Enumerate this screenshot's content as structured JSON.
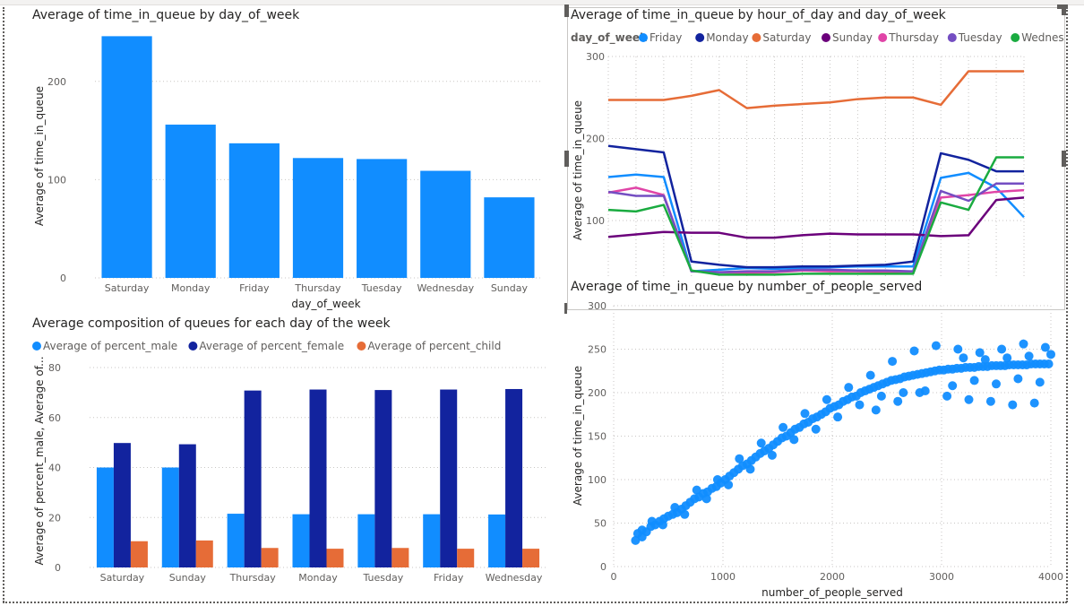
{
  "chart_data": [
    {
      "id": "bar",
      "type": "bar",
      "title": "Average of time_in_queue by day_of_week",
      "xlabel": "day_of_week",
      "ylabel": "Average of time_in_queue",
      "categories": [
        "Saturday",
        "Monday",
        "Friday",
        "Thursday",
        "Tuesday",
        "Wednesday",
        "Sunday"
      ],
      "values": [
        246,
        156,
        137,
        122,
        121,
        109,
        82
      ],
      "ylim": [
        0,
        250
      ],
      "yticks": [
        0,
        100,
        200
      ],
      "color": "#118dff"
    },
    {
      "id": "line",
      "type": "line",
      "title": "Average of time_in_queue by hour_of_day and day_of_week",
      "ylabel": "Average of time_in_queue",
      "legend_title": "day_of_week",
      "legend_position": "top",
      "x": [
        0,
        1,
        2,
        3,
        4,
        5,
        6,
        7,
        8,
        9,
        10,
        11,
        12,
        13,
        14,
        15
      ],
      "ylim": [
        30,
        300
      ],
      "yticks": [
        100,
        200,
        300
      ],
      "series": [
        {
          "name": "Friday",
          "color": "#118dff",
          "values": [
            153,
            156,
            153,
            38,
            40,
            42,
            41,
            42,
            43,
            44,
            44,
            44,
            152,
            158,
            140,
            104
          ]
        },
        {
          "name": "Monday",
          "color": "#12239e",
          "values": [
            191,
            187,
            183,
            50,
            46,
            43,
            43,
            44,
            44,
            45,
            46,
            50,
            182,
            174,
            160,
            160
          ]
        },
        {
          "name": "Saturday",
          "color": "#e66c37",
          "values": [
            247,
            247,
            247,
            252,
            259,
            237,
            240,
            242,
            244,
            248,
            250,
            250,
            241,
            282,
            282,
            282
          ]
        },
        {
          "name": "Sunday",
          "color": "#6b007b",
          "values": [
            80,
            83,
            86,
            85,
            85,
            79,
            79,
            82,
            84,
            83,
            83,
            83,
            81,
            82,
            125,
            128
          ]
        },
        {
          "name": "Thursday",
          "color": "#e044a7",
          "values": [
            134,
            140,
            131,
            38,
            37,
            36,
            37,
            39,
            38,
            38,
            37,
            38,
            128,
            131,
            135,
            137
          ]
        },
        {
          "name": "Tuesday",
          "color": "#744ec2",
          "values": [
            135,
            130,
            130,
            38,
            37,
            38,
            38,
            40,
            40,
            39,
            39,
            38,
            136,
            124,
            145,
            145
          ]
        },
        {
          "name": "Wednesday",
          "color": "#1aab40",
          "values": [
            113,
            111,
            119,
            39,
            34,
            34,
            34,
            35,
            35,
            35,
            35,
            35,
            122,
            113,
            177,
            177
          ]
        }
      ]
    },
    {
      "id": "grouped",
      "type": "bar",
      "title": "Average composition of queues for each day of the week",
      "ylabel": "Average of percent_male, Average of...",
      "categories": [
        "Saturday",
        "Sunday",
        "Thursday",
        "Monday",
        "Tuesday",
        "Friday",
        "Wednesday"
      ],
      "ylim": [
        0,
        80
      ],
      "yticks": [
        0,
        20,
        40,
        60,
        80
      ],
      "legend_position": "top",
      "series": [
        {
          "name": "Average of percent_male",
          "color": "#118dff",
          "values": [
            40,
            40,
            21.5,
            21.3,
            21.3,
            21.3,
            21.2
          ]
        },
        {
          "name": "Average of percent_female",
          "color": "#12239e",
          "values": [
            49.8,
            49.3,
            70.8,
            71.2,
            71,
            71.2,
            71.4
          ]
        },
        {
          "name": "Average of percent_child",
          "color": "#e66c37",
          "values": [
            10.5,
            10.8,
            7.8,
            7.5,
            7.8,
            7.5,
            7.5
          ]
        }
      ]
    },
    {
      "id": "scatter",
      "type": "scatter",
      "title": "Average of time_in_queue by number_of_people_served",
      "xlabel": "number_of_people_served",
      "ylabel": "Average of time_in_queue",
      "xlim": [
        0,
        4000
      ],
      "ylim": [
        0,
        300
      ],
      "xticks": [
        0,
        1000,
        2000,
        3000,
        4000
      ],
      "yticks": [
        0,
        50,
        100,
        150,
        200,
        250,
        300
      ],
      "color": "#118dff",
      "points": [
        [
          200,
          30
        ],
        [
          220,
          38
        ],
        [
          260,
          42
        ],
        [
          300,
          40
        ],
        [
          340,
          46
        ],
        [
          380,
          48
        ],
        [
          420,
          52
        ],
        [
          460,
          55
        ],
        [
          500,
          58
        ],
        [
          540,
          60
        ],
        [
          580,
          62
        ],
        [
          620,
          66
        ],
        [
          660,
          70
        ],
        [
          700,
          74
        ],
        [
          740,
          78
        ],
        [
          780,
          80
        ],
        [
          820,
          84
        ],
        [
          860,
          86
        ],
        [
          900,
          90
        ],
        [
          940,
          92
        ],
        [
          980,
          96
        ],
        [
          1020,
          100
        ],
        [
          1060,
          104
        ],
        [
          1100,
          108
        ],
        [
          1140,
          112
        ],
        [
          1180,
          116
        ],
        [
          1220,
          118
        ],
        [
          1260,
          122
        ],
        [
          1300,
          126
        ],
        [
          1340,
          130
        ],
        [
          1380,
          133
        ],
        [
          1420,
          136
        ],
        [
          1460,
          140
        ],
        [
          1500,
          144
        ],
        [
          1540,
          148
        ],
        [
          1580,
          150
        ],
        [
          1620,
          154
        ],
        [
          1660,
          158
        ],
        [
          1700,
          160
        ],
        [
          1740,
          164
        ],
        [
          1780,
          166
        ],
        [
          1820,
          170
        ],
        [
          1860,
          172
        ],
        [
          1900,
          175
        ],
        [
          1940,
          178
        ],
        [
          1980,
          182
        ],
        [
          2020,
          184
        ],
        [
          2060,
          186
        ],
        [
          2100,
          190
        ],
        [
          2140,
          192
        ],
        [
          2180,
          195
        ],
        [
          2220,
          196
        ],
        [
          2260,
          200
        ],
        [
          2300,
          202
        ],
        [
          2340,
          204
        ],
        [
          2380,
          206
        ],
        [
          2420,
          208
        ],
        [
          2460,
          210
        ],
        [
          2500,
          212
        ],
        [
          2540,
          214
        ],
        [
          2580,
          215
        ],
        [
          2620,
          216
        ],
        [
          2660,
          218
        ],
        [
          2700,
          219
        ],
        [
          2740,
          220
        ],
        [
          2780,
          221
        ],
        [
          2820,
          222
        ],
        [
          2860,
          223
        ],
        [
          2900,
          224
        ],
        [
          2940,
          225
        ],
        [
          2980,
          226
        ],
        [
          3020,
          226
        ],
        [
          3060,
          227
        ],
        [
          3100,
          227
        ],
        [
          3140,
          228
        ],
        [
          3180,
          228
        ],
        [
          3220,
          229
        ],
        [
          3260,
          229
        ],
        [
          3300,
          229
        ],
        [
          3340,
          230
        ],
        [
          3380,
          230
        ],
        [
          3420,
          230
        ],
        [
          3460,
          231
        ],
        [
          3500,
          231
        ],
        [
          3540,
          231
        ],
        [
          3580,
          231
        ],
        [
          3620,
          232
        ],
        [
          3660,
          232
        ],
        [
          3700,
          232
        ],
        [
          3740,
          232
        ],
        [
          3780,
          232
        ],
        [
          3820,
          233
        ],
        [
          3860,
          233
        ],
        [
          3900,
          233
        ],
        [
          3940,
          233
        ],
        [
          3980,
          233
        ],
        [
          260,
          34
        ],
        [
          350,
          52
        ],
        [
          450,
          48
        ],
        [
          560,
          68
        ],
        [
          650,
          60
        ],
        [
          760,
          88
        ],
        [
          850,
          78
        ],
        [
          950,
          100
        ],
        [
          1050,
          94
        ],
        [
          1150,
          124
        ],
        [
          1250,
          112
        ],
        [
          1350,
          142
        ],
        [
          1450,
          128
        ],
        [
          1550,
          160
        ],
        [
          1650,
          146
        ],
        [
          1750,
          176
        ],
        [
          1850,
          158
        ],
        [
          1950,
          192
        ],
        [
          2050,
          172
        ],
        [
          2150,
          206
        ],
        [
          2250,
          186
        ],
        [
          2350,
          220
        ],
        [
          2450,
          196
        ],
        [
          2550,
          236
        ],
        [
          2650,
          200
        ],
        [
          2750,
          248
        ],
        [
          2850,
          202
        ],
        [
          2950,
          254
        ],
        [
          3050,
          196
        ],
        [
          3150,
          250
        ],
        [
          3250,
          192
        ],
        [
          3350,
          246
        ],
        [
          3450,
          190
        ],
        [
          3550,
          250
        ],
        [
          3650,
          186
        ],
        [
          3750,
          256
        ],
        [
          3850,
          188
        ],
        [
          3950,
          252
        ],
        [
          3100,
          208
        ],
        [
          3300,
          214
        ],
        [
          3500,
          210
        ],
        [
          3700,
          216
        ],
        [
          3900,
          212
        ],
        [
          2800,
          200
        ],
        [
          2600,
          190
        ],
        [
          2400,
          180
        ],
        [
          3200,
          240
        ],
        [
          3400,
          238
        ],
        [
          3600,
          240
        ],
        [
          3800,
          242
        ],
        [
          4000,
          244
        ]
      ]
    }
  ]
}
